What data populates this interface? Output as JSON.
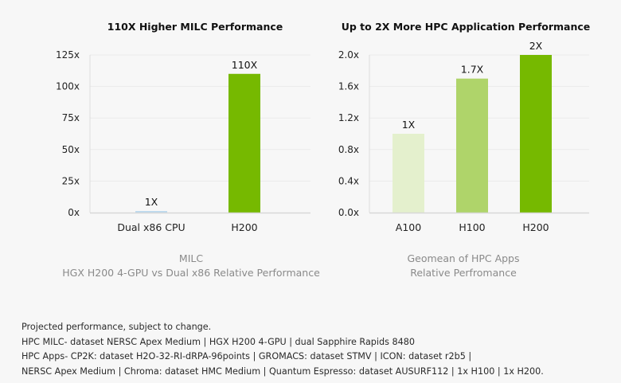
{
  "chart_data": [
    {
      "type": "bar",
      "title": "110X Higher MILC Performance",
      "categories": [
        "Dual x86 CPU",
        "H200"
      ],
      "values": [
        1,
        110
      ],
      "data_labels": [
        "1X",
        "110X"
      ],
      "bar_colors": [
        "#bcd9ee",
        "#76b900"
      ],
      "yticks": [
        "0x",
        "25x",
        "50x",
        "75x",
        "100x",
        "125x"
      ],
      "ytick_values": [
        0,
        25,
        50,
        75,
        100,
        125
      ],
      "ylim": [
        0,
        125
      ],
      "xlabel": "MILC",
      "xlabel2": "HGX H200 4-GPU vs Dual x86 Relative Performance",
      "ylabel": "",
      "grid": true
    },
    {
      "type": "bar",
      "title": "Up to 2X More HPC Application Performance",
      "categories": [
        "A100",
        "H100",
        "H200"
      ],
      "values": [
        1.0,
        1.7,
        2.0
      ],
      "data_labels": [
        "1X",
        "1.7X",
        "2X"
      ],
      "bar_colors": [
        "#e4f0cd",
        "#afd46a",
        "#76b900"
      ],
      "yticks": [
        "0.0x",
        "0.4x",
        "0.8x",
        "1.2x",
        "1.6x",
        "2.0x"
      ],
      "ytick_values": [
        0,
        0.4,
        0.8,
        1.2,
        1.6,
        2.0
      ],
      "ylim": [
        0,
        2.0
      ],
      "xlabel": "Geomean of HPC Apps",
      "xlabel2": "Relative Perfromance",
      "ylabel": "",
      "grid": true
    }
  ],
  "footnotes": [
    "Projected performance, subject to change.",
    "HPC MILC- dataset NERSC Apex Medium | HGX H200 4-GPU | dual Sapphire Rapids 8480",
    "HPC Apps- CP2K: dataset H2O-32-RI-dRPA-96points | GROMACS: dataset STMV | ICON: dataset r2b5 | ",
    "NERSC Apex Medium | Chroma: dataset HMC Medium | Quantum Espresso: dataset AUSURF112 | 1x H100 | 1x H200."
  ]
}
